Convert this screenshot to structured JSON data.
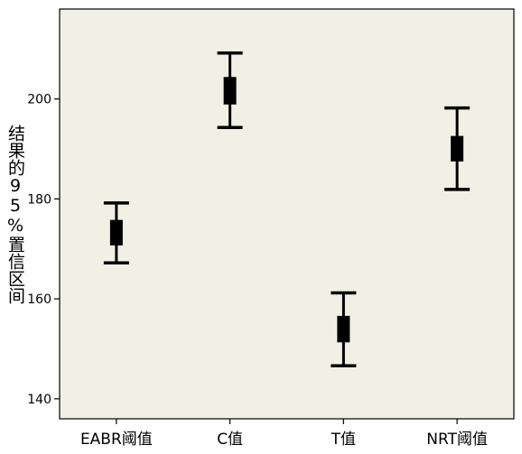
{
  "chart_data": {
    "type": "errorbar",
    "title": "",
    "xlabel": "",
    "ylabel": "结果的95%置信区间",
    "ylim": [
      136,
      218
    ],
    "yticks": [
      140,
      160,
      180,
      200
    ],
    "grid": false,
    "categories": [
      "EABR阈值",
      "C值",
      "T值",
      "NRT阈值"
    ],
    "series": [
      {
        "values": [
          {
            "category": "EABR阈值",
            "mean": 173.2,
            "box_low": 170.7,
            "box_high": 175.8,
            "ci_low": 167.2,
            "ci_high": 179.2
          },
          {
            "category": "C值",
            "mean": 201.6,
            "box_low": 198.9,
            "box_high": 204.4,
            "ci_low": 194.3,
            "ci_high": 209.2
          },
          {
            "category": "T值",
            "mean": 153.9,
            "box_low": 151.3,
            "box_high": 156.6,
            "ci_low": 146.6,
            "ci_high": 161.2
          },
          {
            "category": "NRT阈值",
            "mean": 190.0,
            "box_low": 187.5,
            "box_high": 192.6,
            "ci_low": 181.9,
            "ci_high": 198.2
          }
        ]
      }
    ],
    "colors": {
      "background": "#f1f0e4",
      "marks": "#000000",
      "axis": "#000000"
    }
  }
}
